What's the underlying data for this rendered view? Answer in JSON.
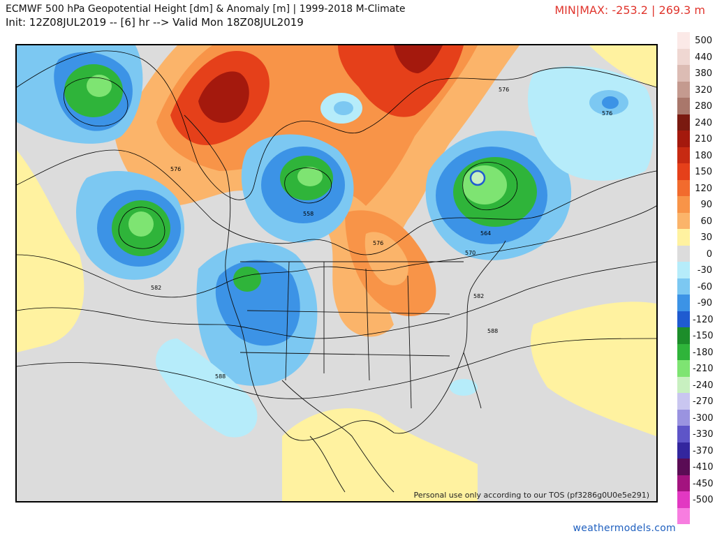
{
  "header": {
    "line1": "ECMWF 500 hPa Geopotential Height [dm] & Anomaly [m] | 1999-2018 M-Climate",
    "line2": "Init: 12Z08JUL2019 -- [6] hr --> Valid Mon 18Z08JUL2019",
    "minmax": "MIN|MAX: -253.2 | 269.3 m"
  },
  "map": {
    "tos_text": "Personal use only according to our TOS (pf3286g0U0e5e291)",
    "contour_labels": [
      "576",
      "576",
      "576",
      "558",
      "564",
      "570",
      "576",
      "582",
      "582",
      "588",
      "588"
    ]
  },
  "legend": {
    "items": [
      {
        "label": "500",
        "color": "#fbe9e7"
      },
      {
        "label": "440",
        "color": "#efd7d2"
      },
      {
        "label": "380",
        "color": "#dcbcb4"
      },
      {
        "label": "320",
        "color": "#c49a8f"
      },
      {
        "label": "280",
        "color": "#a9776b"
      },
      {
        "label": "240",
        "color": "#7a1a10"
      },
      {
        "label": "210",
        "color": "#a4190d"
      },
      {
        "label": "180",
        "color": "#c72a12"
      },
      {
        "label": "150",
        "color": "#e5401a"
      },
      {
        "label": "120",
        "color": "#f26b2d"
      },
      {
        "label": "90",
        "color": "#f89448"
      },
      {
        "label": "60",
        "color": "#fbb46a"
      },
      {
        "label": "30",
        "color": "#fff2a0"
      },
      {
        "label": "0",
        "color": "#dcdcdc"
      },
      {
        "label": "-30",
        "color": "#b6ecfa"
      },
      {
        "label": "-60",
        "color": "#7cc8f2"
      },
      {
        "label": "-90",
        "color": "#3c93e6"
      },
      {
        "label": "-120",
        "color": "#1f5bd0"
      },
      {
        "label": "-150",
        "color": "#1c8d2a"
      },
      {
        "label": "-180",
        "color": "#2fb43a"
      },
      {
        "label": "-210",
        "color": "#7ee472"
      },
      {
        "label": "-240",
        "color": "#c8f0c0"
      },
      {
        "label": "-270",
        "color": "#c9c6f0"
      },
      {
        "label": "-300",
        "color": "#9a93e0"
      },
      {
        "label": "-330",
        "color": "#5e55c8"
      },
      {
        "label": "-370",
        "color": "#33269e"
      },
      {
        "label": "-410",
        "color": "#5a0c55"
      },
      {
        "label": "-450",
        "color": "#a3137f"
      },
      {
        "label": "-500",
        "color": "#e238c2"
      },
      {
        "label": "",
        "color": "#f77de0"
      }
    ]
  },
  "brand": "weathermodels.com"
}
